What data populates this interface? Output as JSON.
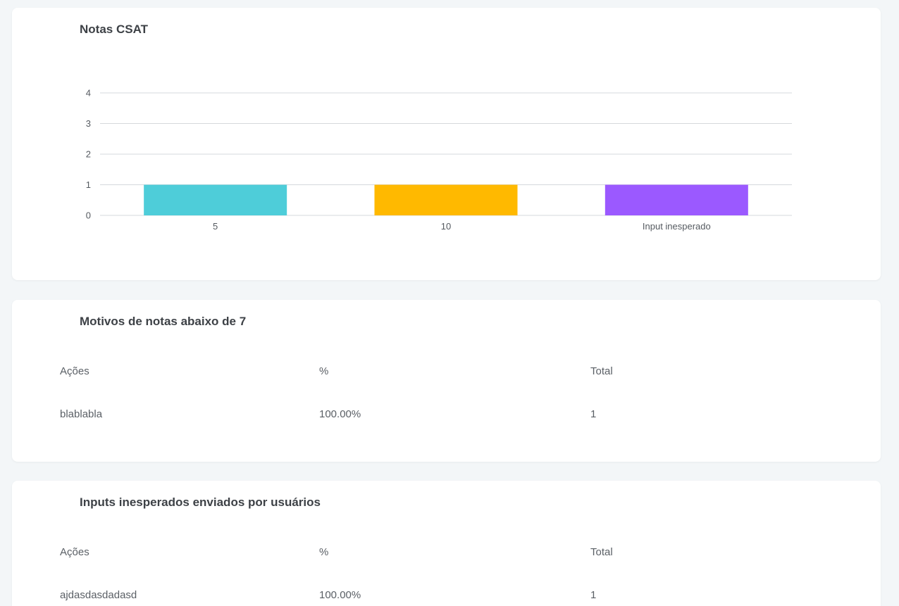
{
  "csat_card": {
    "title": "Notas CSAT"
  },
  "chart_data": {
    "type": "bar",
    "categories": [
      "5",
      "10",
      "Input inesperado"
    ],
    "values": [
      1,
      1,
      1
    ],
    "colors": [
      "#4ecdd9",
      "#ffb900",
      "#9b59ff"
    ],
    "ylim": [
      0,
      4
    ],
    "yticks": [
      "0",
      "1",
      "2",
      "3",
      "4"
    ],
    "grid": true,
    "title": "",
    "xlabel": "",
    "ylabel": ""
  },
  "motivos_card": {
    "title": "Motivos de notas abaixo de 7",
    "headers": [
      "Ações",
      "%",
      "Total"
    ],
    "rows": [
      [
        "blablabla",
        "100.00%",
        "1"
      ]
    ]
  },
  "inputs_card": {
    "title": "Inputs inesperados enviados por usuários",
    "headers": [
      "Ações",
      "%",
      "Total"
    ],
    "rows": [
      [
        "ajdasdasdadasd",
        "100.00%",
        "1"
      ]
    ]
  }
}
